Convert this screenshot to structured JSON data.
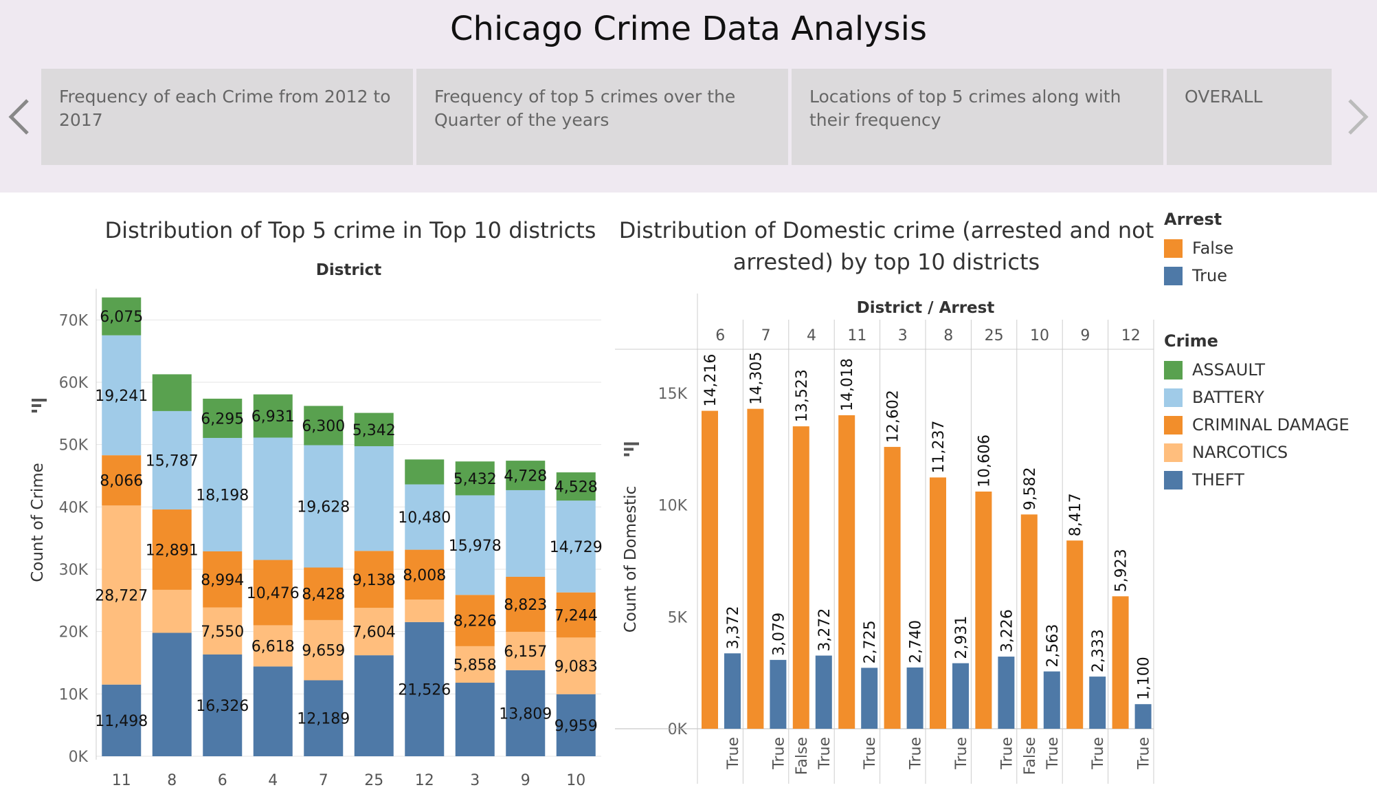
{
  "dashboard": {
    "title": "Chicago Crime Data Analysis",
    "story_points": [
      "Frequency of each Crime from 2012 to 2017",
      "Frequency of top 5 crimes over the Quarter of the years",
      "Locations of top 5 crimes along with their frequency",
      "OVERALL"
    ]
  },
  "left_chart": {
    "title": "Distribution of Top 5 crime in Top 10 districts"
  },
  "right_chart": {
    "title_line1": "Distribution of Domestic crime (arrested and not",
    "title_line2": "arrested) by top 10 districts"
  },
  "legends": {
    "arrest": {
      "title": "Arrest",
      "items": [
        {
          "label": "False",
          "color": "#f28e2b"
        },
        {
          "label": "True",
          "color": "#4e79a7"
        }
      ]
    },
    "crime": {
      "title": "Crime",
      "items": [
        {
          "label": "ASSAULT",
          "color": "#59a14f"
        },
        {
          "label": "BATTERY",
          "color": "#a0cbe8"
        },
        {
          "label": "CRIMINAL DAMAGE",
          "color": "#f28e2b"
        },
        {
          "label": "NARCOTICS",
          "color": "#ffbe7d"
        },
        {
          "label": "THEFT",
          "color": "#4e79a7"
        }
      ]
    }
  },
  "chart_data": [
    {
      "type": "bar",
      "stacked": true,
      "title": "Distribution of Top 5 crime in Top 10 districts",
      "xlabel": "District",
      "ylabel": "Count of Crime",
      "ylim": [
        0,
        75000
      ],
      "yticks": [
        "0K",
        "10K",
        "20K",
        "30K",
        "40K",
        "50K",
        "60K",
        "70K"
      ],
      "categories": [
        "11",
        "8",
        "6",
        "4",
        "7",
        "25",
        "12",
        "3",
        "9",
        "10"
      ],
      "series": [
        {
          "name": "THEFT",
          "color": "#4e79a7",
          "values": [
            11498,
            19800,
            16326,
            14400,
            12189,
            16200,
            21526,
            11800,
            13809,
            9959
          ],
          "labels": [
            "11,498",
            "",
            "16,326",
            "",
            "12,189",
            "",
            "21,526",
            "",
            "13,809",
            "9,959"
          ]
        },
        {
          "name": "NARCOTICS",
          "color": "#ffbe7d",
          "values": [
            28727,
            6900,
            7550,
            6618,
            9659,
            7604,
            3600,
            5858,
            6157,
            9083
          ],
          "labels": [
            "28,727",
            "",
            "7,550",
            "6,618",
            "9,659",
            "7,604",
            "",
            "5,858",
            "6,157",
            "9,083"
          ]
        },
        {
          "name": "CRIMINAL DAMAGE",
          "color": "#f28e2b",
          "values": [
            8066,
            12891,
            8994,
            10476,
            8428,
            9138,
            8008,
            8226,
            8823,
            7244
          ],
          "labels": [
            "8,066",
            "12,891",
            "8,994",
            "10,476",
            "8,428",
            "9,138",
            "8,008",
            "8,226",
            "8,823",
            "7,244"
          ]
        },
        {
          "name": "BATTERY",
          "color": "#a0cbe8",
          "values": [
            19241,
            15787,
            18198,
            19628,
            19628,
            16800,
            10480,
            15978,
            13900,
            14729
          ],
          "labels": [
            "19,241",
            "15,787",
            "18,198",
            "",
            "19,628",
            "",
            "10,480",
            "15,978",
            "",
            "14,729"
          ]
        },
        {
          "name": "ASSAULT",
          "color": "#59a14f",
          "values": [
            6075,
            5900,
            6295,
            6931,
            6300,
            5342,
            4000,
            5432,
            4728,
            4528
          ],
          "labels": [
            "6,075",
            "",
            "6,295",
            "6,931",
            "6,300",
            "5,342",
            "",
            "5,432",
            "4,728",
            "4,528"
          ]
        }
      ]
    },
    {
      "type": "bar",
      "title": "Distribution of Domestic crime (arrested and not arrested) by top 10 districts",
      "xlabel": "District / Arrest",
      "ylabel": "Count of Domestic",
      "ylim": [
        0,
        17000
      ],
      "yticks": [
        "0K",
        "5K",
        "10K",
        "15K"
      ],
      "districts": [
        "6",
        "7",
        "4",
        "11",
        "3",
        "8",
        "25",
        "10",
        "9",
        "12"
      ],
      "arrest_labels": [
        [
          "",
          "True"
        ],
        [
          "",
          "True"
        ],
        [
          "False",
          "True"
        ],
        [
          "",
          "True"
        ],
        [
          "",
          "True"
        ],
        [
          "",
          "True"
        ],
        [
          "",
          "True"
        ],
        [
          "False",
          "True"
        ],
        [
          "",
          "True"
        ],
        [
          "",
          "True"
        ]
      ],
      "series": [
        {
          "name": "False",
          "color": "#f28e2b",
          "values": [
            14216,
            14305,
            13523,
            14018,
            12602,
            11237,
            10606,
            9582,
            8417,
            5923
          ],
          "labels": [
            "14,216",
            "14,305",
            "13,523",
            "14,018",
            "12,602",
            "11,237",
            "10,606",
            "9,582",
            "8,417",
            "5,923"
          ]
        },
        {
          "name": "True",
          "color": "#4e79a7",
          "values": [
            3372,
            3079,
            3272,
            2725,
            2740,
            2931,
            3226,
            2563,
            2333,
            1100
          ],
          "labels": [
            "3,372",
            "3,079",
            "3,272",
            "2,725",
            "2,740",
            "2,931",
            "3,226",
            "2,563",
            "2,333",
            "1,100"
          ]
        }
      ]
    }
  ]
}
